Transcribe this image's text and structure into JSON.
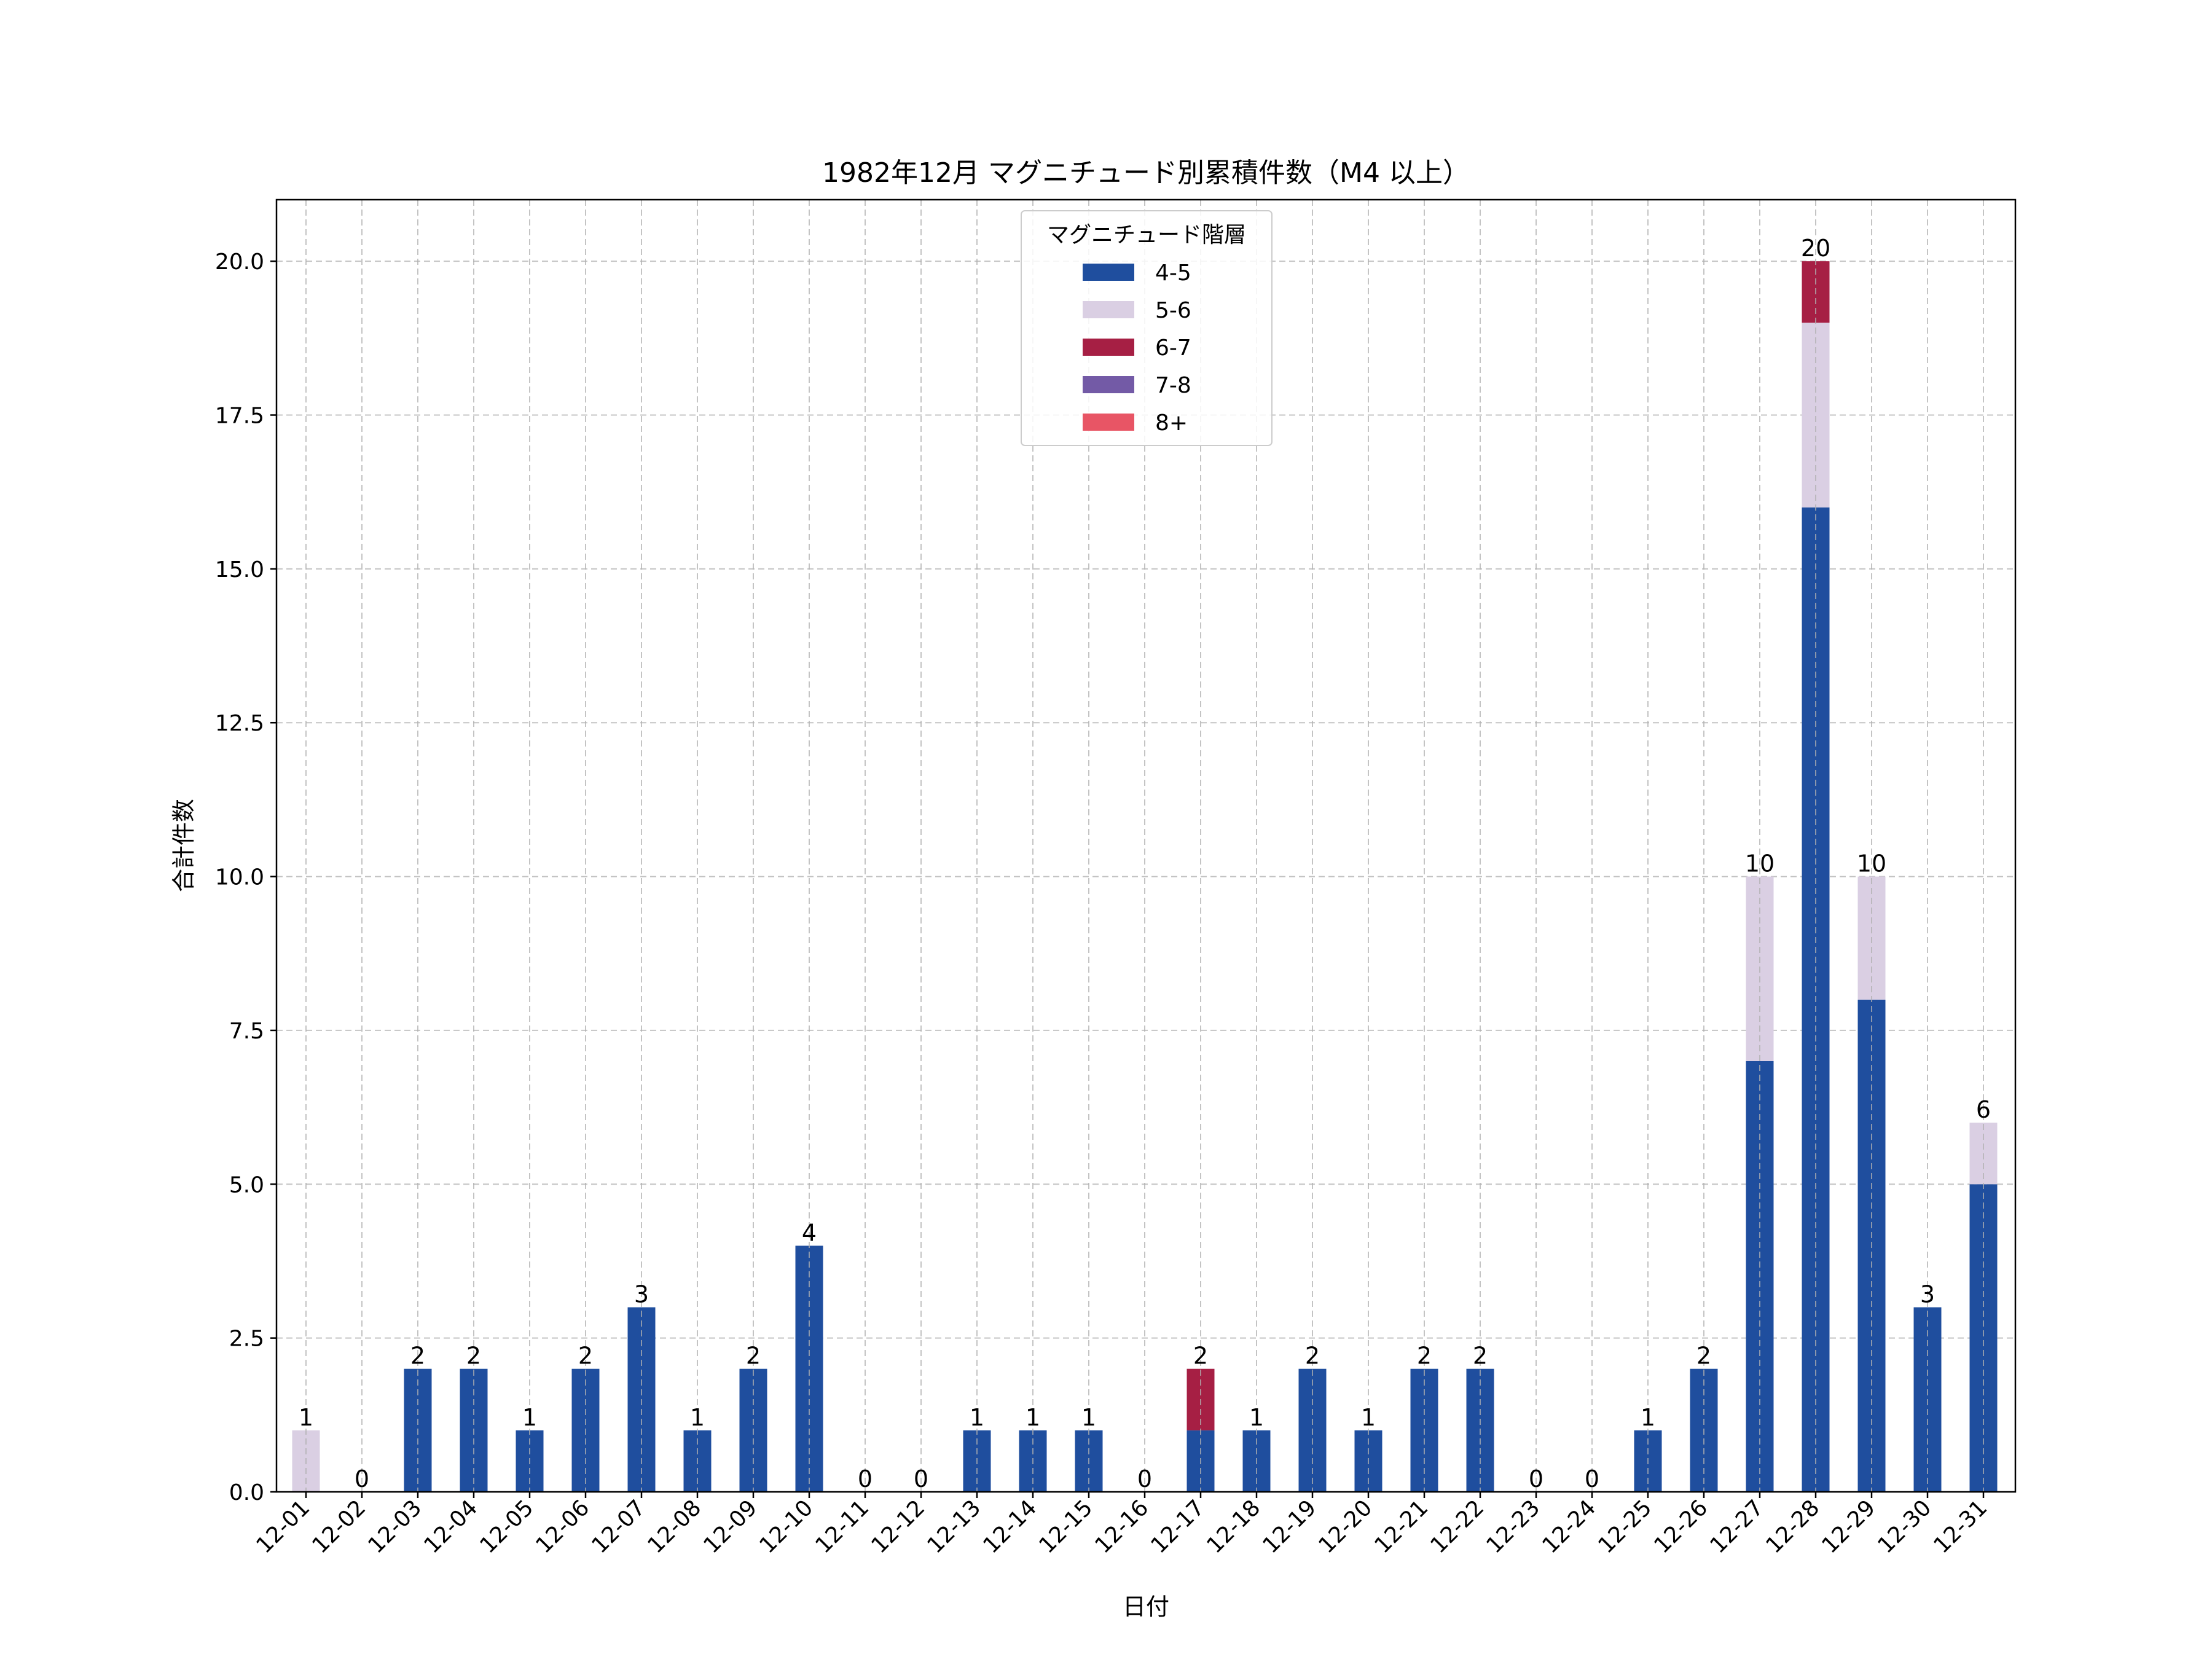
{
  "chart_data": {
    "type": "bar",
    "stacked": true,
    "title": "1982年12月 マグニチュード別累積件数（M4 以上）",
    "xlabel": "日付",
    "ylabel": "合計件数",
    "ylim": [
      0,
      21
    ],
    "yticks": [
      "0.0",
      "2.5",
      "5.0",
      "7.5",
      "10.0",
      "12.5",
      "15.0",
      "17.5",
      "20.0"
    ],
    "grid": true,
    "legend": {
      "title": "マグニチュード階層",
      "position": "top-center"
    },
    "categories": [
      "12-01",
      "12-02",
      "12-03",
      "12-04",
      "12-05",
      "12-06",
      "12-07",
      "12-08",
      "12-09",
      "12-10",
      "12-11",
      "12-12",
      "12-13",
      "12-14",
      "12-15",
      "12-16",
      "12-17",
      "12-18",
      "12-19",
      "12-20",
      "12-21",
      "12-22",
      "12-23",
      "12-24",
      "12-25",
      "12-26",
      "12-27",
      "12-28",
      "12-29",
      "12-30",
      "12-31"
    ],
    "series": [
      {
        "name": "4-5",
        "color": "#1f4e9e",
        "values": [
          0,
          0,
          2,
          2,
          1,
          2,
          3,
          1,
          2,
          4,
          0,
          0,
          1,
          1,
          1,
          0,
          1,
          1,
          2,
          1,
          2,
          2,
          0,
          0,
          1,
          2,
          7,
          16,
          8,
          3,
          5
        ]
      },
      {
        "name": "5-6",
        "color": "#dacfe3",
        "values": [
          1,
          0,
          0,
          0,
          0,
          0,
          0,
          0,
          0,
          0,
          0,
          0,
          0,
          0,
          0,
          0,
          0,
          0,
          0,
          0,
          0,
          0,
          0,
          0,
          0,
          0,
          3,
          3,
          2,
          0,
          1
        ]
      },
      {
        "name": "6-7",
        "color": "#a61f44",
        "values": [
          0,
          0,
          0,
          0,
          0,
          0,
          0,
          0,
          0,
          0,
          0,
          0,
          0,
          0,
          0,
          0,
          1,
          0,
          0,
          0,
          0,
          0,
          0,
          0,
          0,
          0,
          0,
          1,
          0,
          0,
          0
        ]
      },
      {
        "name": "7-8",
        "color": "#735aa6",
        "values": [
          0,
          0,
          0,
          0,
          0,
          0,
          0,
          0,
          0,
          0,
          0,
          0,
          0,
          0,
          0,
          0,
          0,
          0,
          0,
          0,
          0,
          0,
          0,
          0,
          0,
          0,
          0,
          0,
          0,
          0,
          0
        ]
      },
      {
        "name": "8+",
        "color": "#e85565",
        "values": [
          0,
          0,
          0,
          0,
          0,
          0,
          0,
          0,
          0,
          0,
          0,
          0,
          0,
          0,
          0,
          0,
          0,
          0,
          0,
          0,
          0,
          0,
          0,
          0,
          0,
          0,
          0,
          0,
          0,
          0,
          0
        ]
      }
    ],
    "totals": [
      1,
      0,
      2,
      2,
      1,
      2,
      3,
      1,
      2,
      4,
      0,
      0,
      1,
      1,
      1,
      0,
      2,
      1,
      2,
      1,
      2,
      2,
      0,
      0,
      1,
      2,
      10,
      20,
      10,
      3,
      6
    ]
  }
}
